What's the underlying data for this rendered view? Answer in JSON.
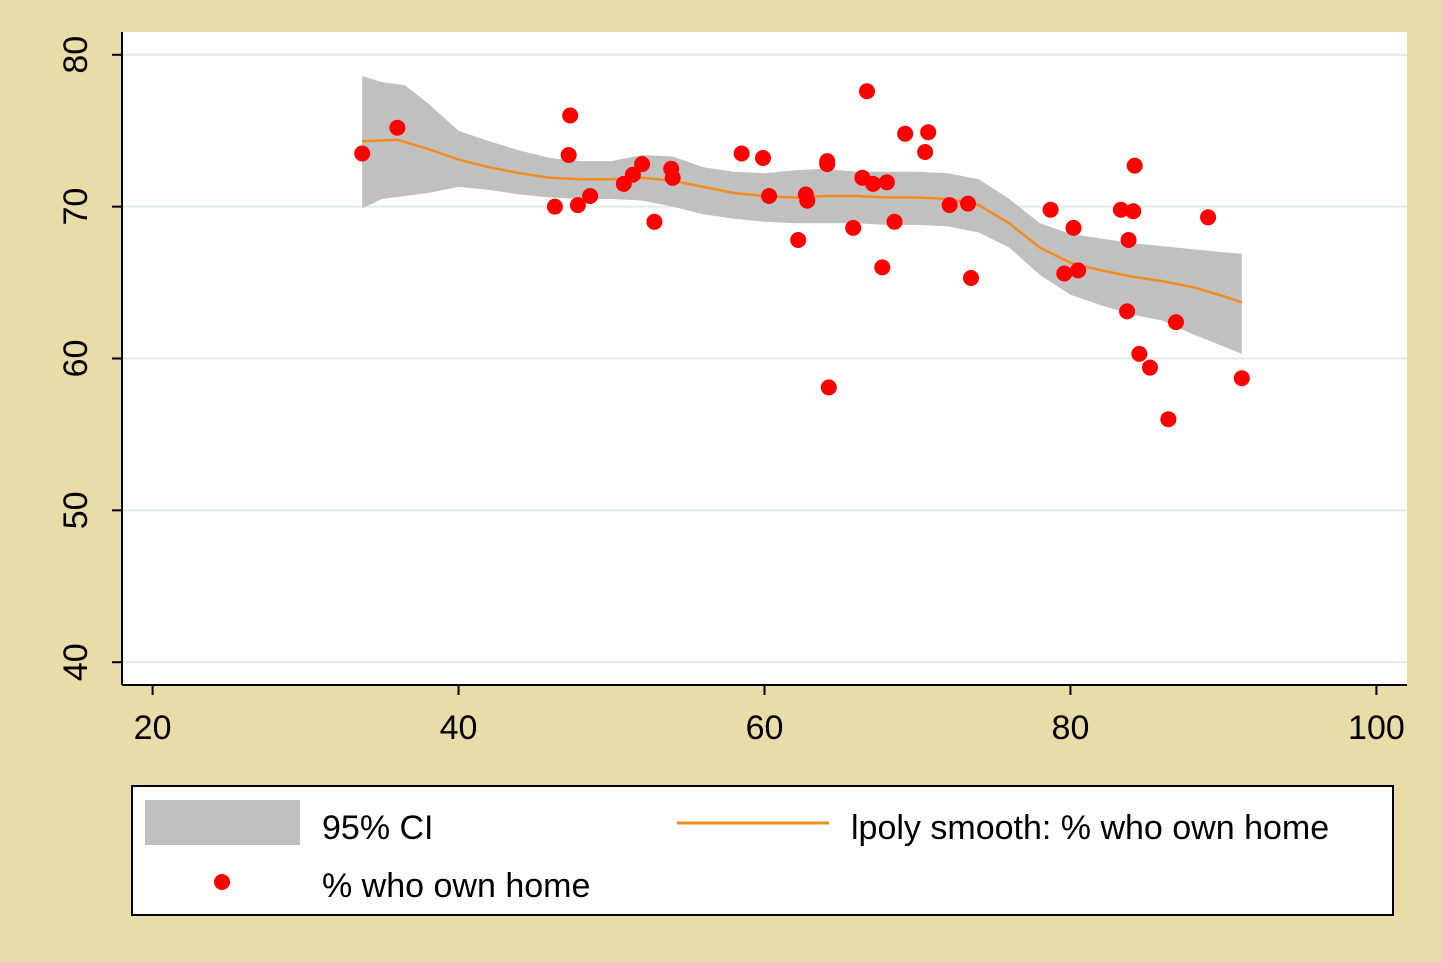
{
  "chart_data": {
    "type": "scatter",
    "title": "",
    "xlabel": "",
    "ylabel": "",
    "xlim": [
      18,
      102
    ],
    "ylim": [
      38.5,
      81.5
    ],
    "xticks": [
      "20",
      "40",
      "60",
      "80",
      "100"
    ],
    "yticks": [
      "40",
      "50",
      "60",
      "70",
      "80"
    ],
    "grid": "horizontal",
    "legend_position": "bottom",
    "colors": {
      "background": "#e8dca8",
      "plot_area": "#ffffff",
      "ci_band": "#c0c0c0",
      "smooth_line": "#f28c1e",
      "points": "#ff0000",
      "gridline": "#e1ebe8"
    },
    "series": [
      {
        "name": "% who own home",
        "type": "scatter",
        "x": [
          33.7,
          36.0,
          46.3,
          47.2,
          47.3,
          47.8,
          48.6,
          50.8,
          51.4,
          52.0,
          52.8,
          53.9,
          54.0,
          58.5,
          59.9,
          60.3,
          62.2,
          62.7,
          62.8,
          64.1,
          64.1,
          64.2,
          65.8,
          66.4,
          66.7,
          67.1,
          67.7,
          68.0,
          68.5,
          69.2,
          70.5,
          70.7,
          72.1,
          73.3,
          73.5,
          78.7,
          79.6,
          80.2,
          80.5,
          83.3,
          83.7,
          83.8,
          84.1,
          84.2,
          84.5,
          85.2,
          86.4,
          86.9,
          89.0,
          91.2
        ],
        "y": [
          73.5,
          75.2,
          70.0,
          73.4,
          76.0,
          70.1,
          70.7,
          71.5,
          72.1,
          72.8,
          69.0,
          72.5,
          71.9,
          73.5,
          73.2,
          70.7,
          67.8,
          70.8,
          70.4,
          73.0,
          72.8,
          58.1,
          68.6,
          71.9,
          77.6,
          71.5,
          66.0,
          71.6,
          69.0,
          74.8,
          73.6,
          74.9,
          70.1,
          70.2,
          65.3,
          69.8,
          65.6,
          68.6,
          65.8,
          69.8,
          63.1,
          67.8,
          69.7,
          72.7,
          60.3,
          59.4,
          56.0,
          62.4,
          69.3,
          58.7
        ]
      },
      {
        "name": "lpoly smooth: % who own home",
        "type": "line",
        "x": [
          33.7,
          36.0,
          38.0,
          40.0,
          42.0,
          44.0,
          46.0,
          48.0,
          50.0,
          52.0,
          54.0,
          56.0,
          58.0,
          60.0,
          62.0,
          64.0,
          66.0,
          68.0,
          70.0,
          72.0,
          74.0,
          76.0,
          78.0,
          80.0,
          82.0,
          84.0,
          86.0,
          88.0,
          90.0,
          91.2
        ],
        "y": [
          74.3,
          74.4,
          73.8,
          73.1,
          72.6,
          72.2,
          71.9,
          71.8,
          71.8,
          71.9,
          71.7,
          71.3,
          70.9,
          70.7,
          70.6,
          70.7,
          70.7,
          70.6,
          70.6,
          70.5,
          70.1,
          68.9,
          67.3,
          66.3,
          65.8,
          65.4,
          65.1,
          64.7,
          64.1,
          63.7
        ]
      },
      {
        "name": "95% CI",
        "type": "area",
        "x": [
          33.7,
          35.0,
          36.5,
          38.0,
          40.0,
          42.0,
          44.0,
          46.0,
          48.0,
          50.0,
          52.0,
          54.0,
          56.0,
          58.0,
          60.0,
          62.0,
          64.0,
          66.0,
          68.0,
          70.0,
          72.0,
          74.0,
          76.0,
          78.0,
          80.0,
          82.0,
          84.0,
          86.0,
          88.0,
          90.0,
          91.2
        ],
        "upper": [
          78.6,
          78.2,
          78.0,
          76.8,
          75.0,
          74.3,
          73.7,
          73.2,
          73.0,
          73.0,
          73.4,
          73.3,
          72.6,
          72.3,
          72.2,
          72.4,
          72.5,
          72.3,
          72.3,
          72.3,
          72.2,
          71.8,
          70.5,
          68.9,
          68.2,
          67.9,
          67.6,
          67.4,
          67.2,
          67.0,
          66.9
        ],
        "lower": [
          69.9,
          70.5,
          70.7,
          70.9,
          71.3,
          71.1,
          70.8,
          70.6,
          70.5,
          70.5,
          70.4,
          70.0,
          69.5,
          69.2,
          69.0,
          68.9,
          68.9,
          68.9,
          68.8,
          68.8,
          68.7,
          68.3,
          67.3,
          65.5,
          64.2,
          63.5,
          62.9,
          62.5,
          61.6,
          60.8,
          60.3
        ]
      }
    ],
    "legend": [
      {
        "key": "ci",
        "label": "95% CI"
      },
      {
        "key": "line",
        "label": "lpoly smooth: % who own home"
      },
      {
        "key": "points",
        "label": "% who own home"
      }
    ]
  }
}
